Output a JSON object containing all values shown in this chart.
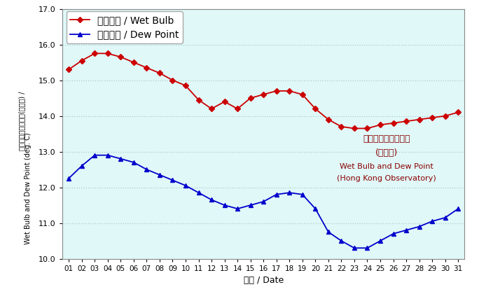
{
  "days": [
    1,
    2,
    3,
    4,
    5,
    6,
    7,
    8,
    9,
    10,
    11,
    12,
    13,
    14,
    15,
    16,
    17,
    18,
    19,
    20,
    21,
    22,
    23,
    24,
    25,
    26,
    27,
    28,
    29,
    30,
    31
  ],
  "wet_bulb": [
    15.3,
    15.55,
    15.75,
    15.75,
    15.65,
    15.5,
    15.35,
    15.2,
    15.0,
    14.85,
    14.45,
    14.2,
    14.4,
    14.2,
    14.5,
    14.6,
    14.7,
    14.7,
    14.6,
    14.2,
    13.9,
    13.7,
    13.65,
    13.65,
    13.75,
    13.8,
    13.85,
    13.9,
    13.95,
    14.0,
    14.1
  ],
  "dew_point": [
    12.25,
    12.6,
    12.9,
    12.9,
    12.8,
    12.7,
    12.5,
    12.35,
    12.2,
    12.05,
    11.85,
    11.65,
    11.5,
    11.4,
    11.5,
    11.6,
    11.8,
    11.85,
    11.8,
    11.4,
    10.75,
    10.5,
    10.3,
    10.3,
    10.5,
    10.7,
    10.8,
    10.9,
    11.05,
    11.15,
    11.4
  ],
  "wet_bulb_color": "#cc0000",
  "dew_point_color": "#0000cc",
  "plot_bg_color": "#e0f8f8",
  "ylim": [
    10.0,
    17.0
  ],
  "yticks": [
    10.0,
    11.0,
    12.0,
    13.0,
    14.0,
    15.0,
    16.0,
    17.0
  ],
  "xlabel": "日期 / Date",
  "ylabel_line1": "濕球温度及露點温度(攝氏度) /",
  "ylabel_line2": "Wet Bulb and Dew Point (deg. C)",
  "legend_wet_bulb": "濕球温度 / Wet Bulb",
  "legend_dew_point": "露點温度 / Dew Point",
  "annotation_line1": "濕球温度及露點温度",
  "annotation_line2": "(天文台)",
  "annotation_line3": "Wet Bulb and Dew Point",
  "annotation_line4": "(Hong Kong Observatory)",
  "annotation_color": "#8b0000",
  "grid_color": "#aacccc",
  "tick_labels": [
    "01",
    "02",
    "03",
    "04",
    "05",
    "06",
    "07",
    "08",
    "09",
    "10",
    "11",
    "12",
    "13",
    "14",
    "15",
    "16",
    "17",
    "18",
    "19",
    "20",
    "21",
    "22",
    "23",
    "24",
    "25",
    "26",
    "27",
    "28",
    "29",
    "30",
    "31"
  ]
}
